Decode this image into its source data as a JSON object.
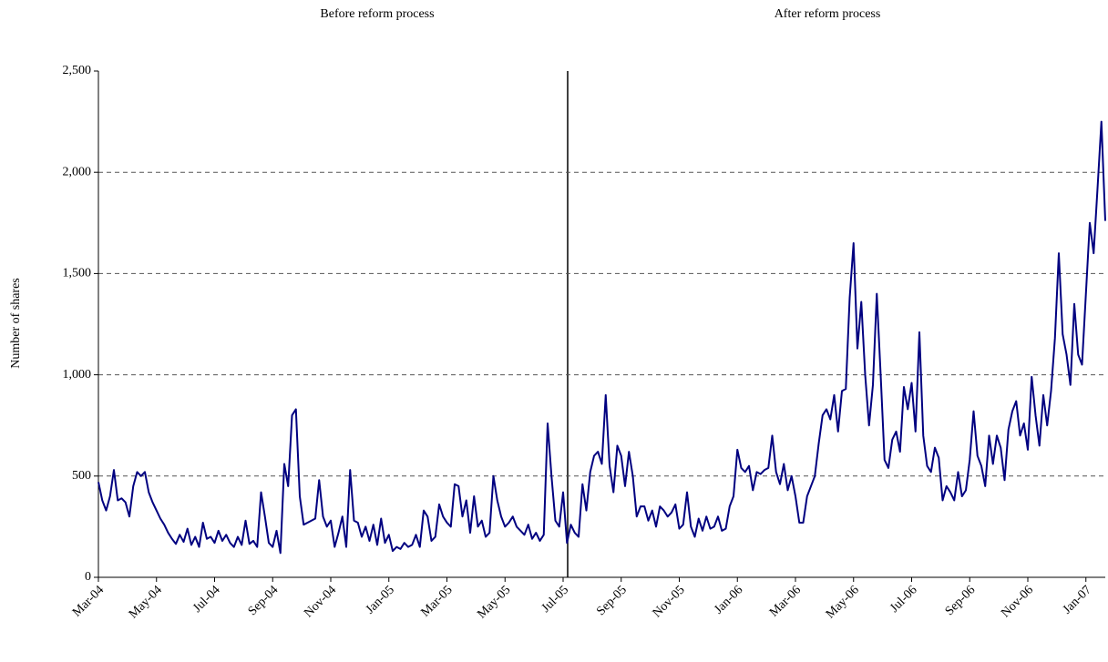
{
  "chart_data": {
    "type": "line",
    "annotations": [
      "Before reform process",
      "After reform process"
    ],
    "y_label": "Number of shares",
    "categories": [
      "Mar-04",
      null,
      null,
      null,
      null,
      null,
      null,
      null,
      null,
      null,
      null,
      null,
      null,
      null,
      null,
      "May-04",
      null,
      null,
      null,
      null,
      null,
      null,
      null,
      null,
      null,
      null,
      null,
      null,
      null,
      null,
      "Jul-04",
      null,
      null,
      null,
      null,
      null,
      null,
      null,
      null,
      null,
      null,
      null,
      null,
      null,
      null,
      "Sep-04",
      null,
      null,
      null,
      null,
      null,
      null,
      null,
      null,
      null,
      null,
      null,
      null,
      null,
      null,
      "Nov-04",
      null,
      null,
      null,
      null,
      null,
      null,
      null,
      null,
      null,
      null,
      null,
      null,
      null,
      null,
      "Jan-05",
      null,
      null,
      null,
      null,
      null,
      null,
      null,
      null,
      null,
      null,
      null,
      null,
      null,
      null,
      "Mar-05",
      null,
      null,
      null,
      null,
      null,
      null,
      null,
      null,
      null,
      null,
      null,
      null,
      null,
      null,
      "May-05",
      null,
      null,
      null,
      null,
      null,
      null,
      null,
      null,
      null,
      null,
      null,
      null,
      null,
      null,
      "Jul-05",
      null,
      null,
      null,
      null,
      null,
      null,
      null,
      null,
      null,
      null,
      null,
      null,
      null,
      null,
      "Sep-05",
      null,
      null,
      null,
      null,
      null,
      null,
      null,
      null,
      null,
      null,
      null,
      null,
      null,
      null,
      "Nov-05",
      null,
      null,
      null,
      null,
      null,
      null,
      null,
      null,
      null,
      null,
      null,
      null,
      null,
      null,
      "Jan-06",
      null,
      null,
      null,
      null,
      null,
      null,
      null,
      null,
      null,
      null,
      null,
      null,
      null,
      null,
      "Mar-06",
      null,
      null,
      null,
      null,
      null,
      null,
      null,
      null,
      null,
      null,
      null,
      null,
      null,
      null,
      "May-06",
      null,
      null,
      null,
      null,
      null,
      null,
      null,
      null,
      null,
      null,
      null,
      null,
      null,
      null,
      "Jul-06",
      null,
      null,
      null,
      null,
      null,
      null,
      null,
      null,
      null,
      null,
      null,
      null,
      null,
      null,
      "Sep-06",
      null,
      null,
      null,
      null,
      null,
      null,
      null,
      null,
      null,
      null,
      null,
      null,
      null,
      null,
      "Nov-06",
      null,
      null,
      null,
      null,
      null,
      null,
      null,
      null,
      null,
      null,
      null,
      null,
      null,
      null,
      "Jan-07",
      null,
      null,
      null,
      null,
      null
    ],
    "series": [
      {
        "color": "#000080",
        "values": [
          470,
          380,
          330,
          400,
          530,
          380,
          390,
          370,
          300,
          450,
          520,
          500,
          520,
          420,
          370,
          330,
          290,
          260,
          220,
          190,
          165,
          210,
          175,
          240,
          160,
          200,
          150,
          270,
          190,
          200,
          170,
          230,
          180,
          210,
          170,
          150,
          200,
          160,
          280,
          165,
          180,
          150,
          420,
          300,
          170,
          150,
          230,
          120,
          560,
          450,
          800,
          830,
          400,
          260,
          270,
          280,
          290,
          480,
          300,
          250,
          280,
          150,
          220,
          300,
          150,
          530,
          280,
          270,
          200,
          250,
          180,
          260,
          160,
          290,
          170,
          210,
          130,
          150,
          140,
          170,
          150,
          160,
          210,
          150,
          330,
          300,
          180,
          200,
          360,
          300,
          270,
          250,
          460,
          450,
          300,
          380,
          220,
          400,
          250,
          280,
          200,
          220,
          500,
          380,
          300,
          250,
          270,
          300,
          250,
          230,
          210,
          260,
          190,
          220,
          180,
          210,
          760,
          500,
          280,
          250,
          420,
          170,
          260,
          220,
          200,
          460,
          330,
          520,
          600,
          620,
          560,
          900,
          550,
          420,
          650,
          600,
          450,
          620,
          500,
          300,
          350,
          350,
          280,
          330,
          250,
          350,
          330,
          300,
          320,
          360,
          240,
          260,
          420,
          250,
          200,
          290,
          230,
          300,
          240,
          250,
          300,
          230,
          240,
          350,
          400,
          630,
          540,
          520,
          550,
          430,
          520,
          510,
          530,
          540,
          700,
          520,
          460,
          560,
          430,
          500,
          400,
          270,
          270,
          400,
          450,
          500,
          660,
          800,
          830,
          780,
          900,
          720,
          920,
          930,
          1380,
          1650,
          1130,
          1360,
          1000,
          750,
          950,
          1400,
          1000,
          580,
          540,
          680,
          720,
          620,
          940,
          830,
          960,
          720,
          1210,
          700,
          550,
          520,
          640,
          590,
          380,
          450,
          420,
          380,
          520,
          400,
          430,
          580,
          820,
          600,
          550,
          450,
          700,
          560,
          700,
          640,
          480,
          730,
          820,
          870,
          700,
          760,
          630,
          990,
          800,
          650,
          900,
          750,
          920,
          1180,
          1600,
          1200,
          1100,
          950,
          1350,
          1100,
          1050,
          1400,
          1750,
          1600,
          1920,
          2250,
          1760
        ]
      }
    ],
    "ylim": [
      0,
      2500
    ],
    "yticks": [
      0,
      500,
      {
        "value": 1000,
        "label": "1,000"
      },
      {
        "value": 1500,
        "label": "1,500"
      },
      {
        "value": 2000,
        "label": "2,000"
      },
      {
        "value": 2500,
        "label": "2,500"
      }
    ],
    "grid": true
  }
}
